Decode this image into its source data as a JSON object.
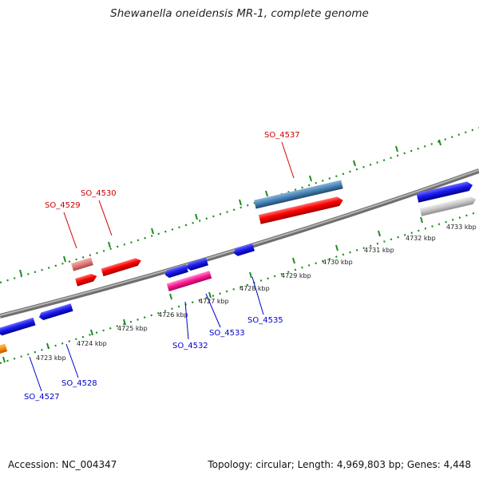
{
  "header": {
    "title": "Shewanella oneidensis MR-1, complete genome"
  },
  "footer": {
    "accession": "Accession: NC_004347",
    "summary": "Topology: circular; Length: 4,969,803 bp; Genes: 4,448"
  },
  "scale": {
    "labels": [
      "4723 kbp",
      "4724 kbp",
      "4725 kbp",
      "4726 kbp",
      "4727 kbp",
      "4728 kbp",
      "4729 kbp",
      "4730 kbp",
      "4731 kbp",
      "4732 kbp",
      "4733 kbp"
    ]
  },
  "genes": {
    "top": [
      "SO_4529",
      "SO_4530",
      "SO_4537"
    ],
    "bottom": [
      "SO_4527",
      "SO_4528",
      "SO_4532",
      "SO_4533",
      "SO_4535"
    ]
  },
  "colors": {
    "backbone": "#8a8a8a",
    "tick": "#1f8a1f",
    "label_top": "#cc0000",
    "label_bottom": "#0000cc"
  }
}
